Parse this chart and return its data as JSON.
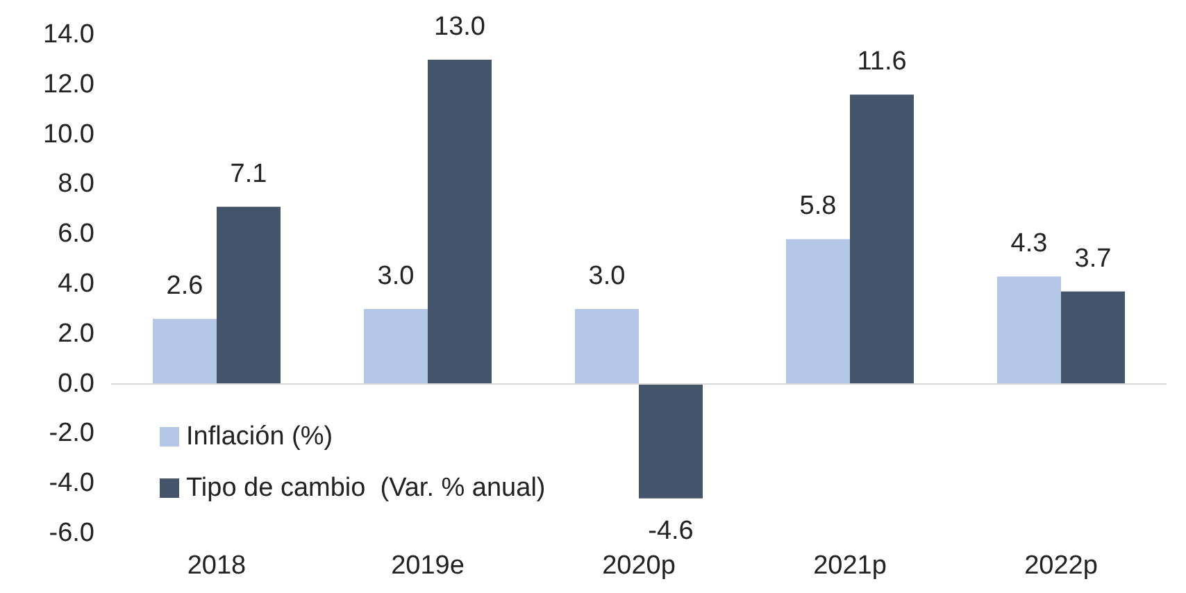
{
  "chart_data": {
    "type": "bar",
    "categories": [
      "2018",
      "2019e",
      "2020p",
      "2021p",
      "2022p"
    ],
    "series": [
      {
        "name": "Inflación (%)",
        "color": "#b4c7e7",
        "values": [
          2.6,
          3.0,
          3.0,
          5.8,
          4.3
        ],
        "value_labels": [
          "2.6",
          "3.0",
          "3.0",
          "5.8",
          "4.3"
        ]
      },
      {
        "name": "Tipo de cambio  (Var. % anual)",
        "color": "#44546a",
        "values": [
          7.1,
          13.0,
          -4.6,
          11.6,
          3.7
        ],
        "value_labels": [
          "7.1",
          "13.0",
          "-4.6",
          "11.6",
          "3.7"
        ]
      }
    ],
    "ylim": [
      -6,
      14
    ],
    "yticks": [
      {
        "value": -6,
        "label": "-6.0"
      },
      {
        "value": -4,
        "label": "-4.0"
      },
      {
        "value": -2,
        "label": "-2.0"
      },
      {
        "value": 0,
        "label": "0.0"
      },
      {
        "value": 2,
        "label": "2.0"
      },
      {
        "value": 4,
        "label": "4.0"
      },
      {
        "value": 6,
        "label": "6.0"
      },
      {
        "value": 8,
        "label": "8.0"
      },
      {
        "value": 10,
        "label": "10.0"
      },
      {
        "value": 12,
        "label": "12.0"
      },
      {
        "value": 14,
        "label": "14.0"
      }
    ],
    "ref_lines": [
      {
        "axis": "y",
        "value": 0,
        "color": "#d9d9d9"
      }
    ],
    "grid": false,
    "legend": "bottom left"
  }
}
